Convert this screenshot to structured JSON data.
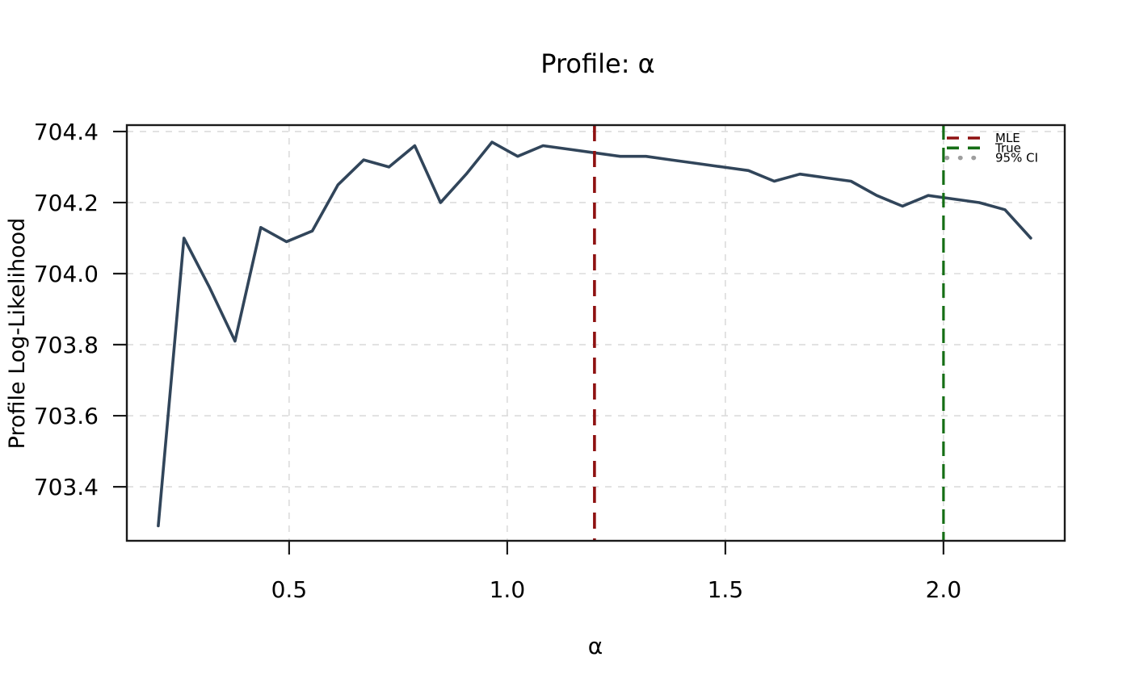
{
  "chart_data": {
    "type": "line",
    "title": "Profile: α",
    "xlabel": "α",
    "ylabel": "Profile Log-Likelihood",
    "xlim": [
      0.128,
      2.278
    ],
    "ylim": [
      703.248,
      704.418
    ],
    "xtick_values": [
      0.5,
      1.0,
      1.5,
      2.0
    ],
    "xtick_labels": [
      "0.5",
      "1.0",
      "1.5",
      "2.0"
    ],
    "ytick_values": [
      703.4,
      703.6,
      703.8,
      704.0,
      704.2,
      704.4
    ],
    "ytick_labels": [
      "703.4",
      "703.6",
      "703.8",
      "704.0",
      "704.2",
      "704.4"
    ],
    "grid": true,
    "grid_color": "#dcdcdc",
    "series": [
      {
        "name": "profile-log-likelihood",
        "color": "#31455a",
        "x": [
          0.2,
          0.259,
          0.318,
          0.376,
          0.435,
          0.494,
          0.553,
          0.612,
          0.671,
          0.729,
          0.788,
          0.847,
          0.906,
          0.965,
          1.024,
          1.082,
          1.141,
          1.2,
          1.259,
          1.318,
          1.376,
          1.435,
          1.494,
          1.553,
          1.612,
          1.671,
          1.729,
          1.788,
          1.847,
          1.906,
          1.965,
          2.024,
          2.082,
          2.141,
          2.2
        ],
        "y": [
          703.29,
          704.1,
          703.96,
          703.81,
          704.13,
          704.09,
          704.12,
          704.25,
          704.32,
          704.3,
          704.36,
          704.2,
          704.28,
          704.37,
          704.33,
          704.36,
          704.35,
          704.34,
          704.33,
          704.33,
          704.32,
          704.31,
          704.3,
          704.29,
          704.26,
          704.28,
          704.27,
          704.26,
          704.22,
          704.19,
          704.22,
          704.21,
          704.2,
          704.18,
          704.1
        ]
      }
    ],
    "vlines": [
      {
        "label": "MLE",
        "x": 1.2,
        "color": "#8e1111",
        "dash": "20 12",
        "width": 3.6
      },
      {
        "label": "True",
        "x": 2.0,
        "color": "#156e15",
        "dash": "18 10",
        "width": 3.2
      }
    ],
    "legend": {
      "position": "upper right",
      "entries": [
        {
          "label": "MLE",
          "color": "#8e1111",
          "style": "dashed"
        },
        {
          "label": "True",
          "color": "#156e15",
          "style": "dashed"
        },
        {
          "label": "95% CI",
          "color": "#9e9e9e",
          "style": "dotted"
        }
      ]
    }
  }
}
